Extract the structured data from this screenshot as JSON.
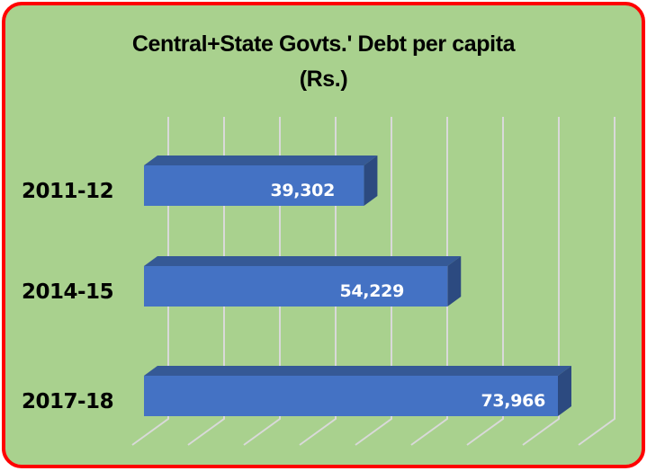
{
  "chart_data": {
    "type": "bar",
    "orientation": "horizontal",
    "style": "3d-clustered-bar",
    "title": "Central+State  Govts.' Debt per capita (Rs.)",
    "title_lines": [
      "Central+State  Govts.' Debt per capita",
      "(Rs.)"
    ],
    "categories": [
      "2011-12",
      "2014-15",
      "2017-18"
    ],
    "values": [
      39302,
      54229,
      73966
    ],
    "value_labels": [
      "39,302",
      "54,229",
      "73,966"
    ],
    "xlabel": "",
    "ylabel": "",
    "xlim": [
      0,
      90000
    ],
    "grid": true,
    "legend": null,
    "colors": {
      "bar_front": "#4472c4",
      "bar_top": "#355996",
      "bar_side": "#2c4a80",
      "plot_background": "#a9d18e",
      "border": "#ff0000",
      "gridline": "#d9d9d9"
    }
  }
}
